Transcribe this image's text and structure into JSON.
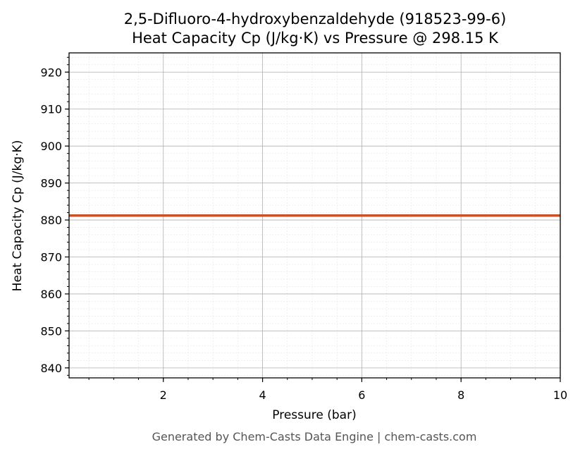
{
  "chart_data": {
    "type": "line",
    "title": "2,5-Difluoro-4-hydroxybenzaldehyde (918523-99-6)",
    "subtitle": "Heat Capacity Cp (J/kg·K) vs Pressure @ 298.15 K",
    "xlabel": "Pressure (bar)",
    "ylabel": "Heat Capacity Cp (J/kg·K)",
    "xlim": [
      0.1,
      10
    ],
    "ylim": [
      837.3,
      925.2
    ],
    "x_ticks": [
      2,
      4,
      6,
      8,
      10
    ],
    "x_tick_labels": [
      "2",
      "4",
      "6",
      "8",
      "10"
    ],
    "y_ticks": [
      840,
      850,
      860,
      870,
      880,
      890,
      900,
      910,
      920
    ],
    "y_tick_labels": [
      "840",
      "850",
      "860",
      "870",
      "880",
      "890",
      "900",
      "910",
      "920"
    ],
    "grid": true,
    "minor_grid": true,
    "series": [
      {
        "color": "#c8522a",
        "x": [
          0.1,
          1,
          2,
          3,
          4,
          5,
          6,
          7,
          8,
          9,
          10
        ],
        "y": [
          881.2,
          881.2,
          881.2,
          881.2,
          881.2,
          881.2,
          881.2,
          881.2,
          881.2,
          881.2,
          881.2
        ]
      }
    ]
  },
  "footer": "Generated by Chem-Casts Data Engine | chem-casts.com"
}
